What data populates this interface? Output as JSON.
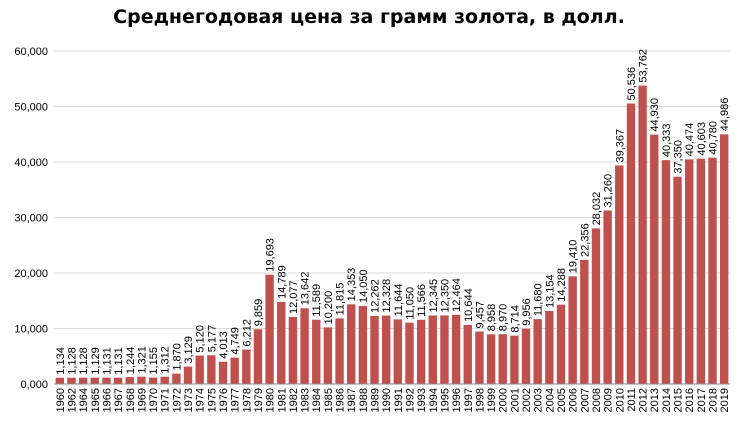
{
  "chart_data": {
    "type": "bar",
    "title": "Среднегодовая цена за грамм золота, в долл.",
    "xlabel": "",
    "ylabel": "",
    "ylim": [
      0,
      60
    ],
    "yticks": [
      0,
      10,
      20,
      30,
      40,
      50,
      60
    ],
    "ytick_labels": [
      "0,000",
      "10,000",
      "20,000",
      "30,000",
      "40,000",
      "50,000",
      "60,000"
    ],
    "grid": true,
    "bar_color": "#c0504d",
    "categories": [
      "1960",
      "1962",
      "1964",
      "1965",
      "1966",
      "1967",
      "1968",
      "1969",
      "1970",
      "1971",
      "1972",
      "1973",
      "1974",
      "1975",
      "1976",
      "1977",
      "1978",
      "1979",
      "1980",
      "1981",
      "1982",
      "1983",
      "1984",
      "1985",
      "1986",
      "1987",
      "1988",
      "1989",
      "1990",
      "1991",
      "1992",
      "1993",
      "1994",
      "1995",
      "1996",
      "1997",
      "1998",
      "1999",
      "2000",
      "2001",
      "2002",
      "2003",
      "2004",
      "2005",
      "2006",
      "2007",
      "2008",
      "2009",
      "2010",
      "2011",
      "2012",
      "2013",
      "2014",
      "2015",
      "2016",
      "2017",
      "2018",
      "2019"
    ],
    "values": [
      1.134,
      1.128,
      1.128,
      1.129,
      1.131,
      1.131,
      1.244,
      1.321,
      1.155,
      1.312,
      1.87,
      3.129,
      5.12,
      5.177,
      4.013,
      4.749,
      6.212,
      9.859,
      19.693,
      14.789,
      12.077,
      13.642,
      11.589,
      10.2,
      11.815,
      14.353,
      14.05,
      12.262,
      12.328,
      11.644,
      11.05,
      11.566,
      12.345,
      12.35,
      12.464,
      10.644,
      9.457,
      8.958,
      8.97,
      8.714,
      9.956,
      11.68,
      13.154,
      14.288,
      19.41,
      22.356,
      28.032,
      31.26,
      39.367,
      50.536,
      53.762,
      44.93,
      40.333,
      37.35,
      40.474,
      40.603,
      40.78,
      44.986
    ],
    "data_labels": [
      "1,134",
      "1,128",
      "1,128",
      "1,129",
      "1,131",
      "1,131",
      "1,244",
      "1,321",
      "1,155",
      "1,312",
      "1,870",
      "3,129",
      "5,120",
      "5,177",
      "4,013",
      "4,749",
      "6,212",
      "9,859",
      "19,693",
      "14,789",
      "12,077",
      "13,642",
      "11,589",
      "10,200",
      "11,815",
      "14,353",
      "14,050",
      "12,262",
      "12,328",
      "11,644",
      "11,050",
      "11,566",
      "12,345",
      "12,350",
      "12,464",
      "10,644",
      "9,457",
      "8,958",
      "8,970",
      "8,714",
      "9,956",
      "11,680",
      "13,154",
      "14,288",
      "19,410",
      "22,356",
      "28,032",
      "31,260",
      "39,367",
      "50,536",
      "53,762",
      "44,930",
      "40,333",
      "37,350",
      "40,474",
      "40,603",
      "40,780",
      "44,986"
    ]
  }
}
